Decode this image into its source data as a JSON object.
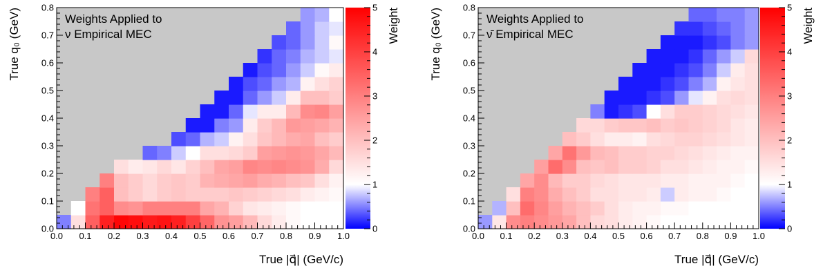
{
  "chart_data": [
    {
      "type": "heatmap",
      "title": "",
      "annotation_lines": [
        "Weights Applied to",
        "ν Empirical MEC"
      ],
      "xlabel": "True |q⃗| (GeV/c)",
      "ylabel": "True q₀ (GeV)",
      "zlabel": "Weight",
      "xlim": [
        0,
        1
      ],
      "ylim": [
        0,
        0.8
      ],
      "zlim": [
        0,
        5
      ],
      "x_ticks": [
        "0.0",
        "0.1",
        "0.2",
        "0.3",
        "0.4",
        "0.5",
        "0.6",
        "0.7",
        "0.8",
        "0.9",
        "1.0"
      ],
      "y_ticks": [
        "0.0",
        "0.1",
        "0.2",
        "0.3",
        "0.4",
        "0.5",
        "0.6",
        "0.7",
        "0.8"
      ],
      "z_ticks": [
        "0",
        "1",
        "2",
        "3",
        "4",
        "5"
      ],
      "bin_width_x": 0.05,
      "bin_width_y": 0.05,
      "empty_region_color": "#c8c8c8",
      "colorscale": [
        [
          0,
          "#0000ff"
        ],
        [
          1,
          "#ffffff"
        ],
        [
          5,
          "#ff0000"
        ]
      ],
      "z": [
        [
          0.5,
          1.5,
          3.5,
          4.5,
          4.9,
          4.8,
          4.6,
          4.7,
          4.5,
          4.0,
          3.4,
          2.7,
          2.5,
          2.1,
          1.6,
          1.3,
          1.1,
          1.0,
          1.0,
          1.0
        ],
        [
          0,
          1.0,
          3.2,
          3.5,
          2.8,
          2.7,
          3.0,
          3.0,
          3.0,
          3.0,
          2.4,
          2.2,
          1.7,
          1.4,
          1.3,
          1.2,
          1.1,
          1.0,
          1.0,
          1.0
        ],
        [
          0,
          0,
          3.0,
          3.5,
          2.0,
          1.8,
          1.6,
          1.8,
          1.9,
          1.8,
          1.8,
          1.8,
          1.9,
          1.8,
          1.7,
          1.6,
          1.5,
          1.3,
          1.2,
          1.1
        ],
        [
          0,
          0,
          0,
          3.0,
          2.0,
          1.8,
          1.6,
          1.8,
          1.9,
          1.8,
          2.2,
          2.3,
          2.4,
          2.5,
          2.3,
          2.2,
          2.0,
          1.9,
          1.5,
          1.2
        ],
        [
          0,
          0,
          0,
          0,
          1.5,
          1.3,
          1.4,
          1.6,
          1.4,
          1.7,
          2.0,
          2.4,
          2.5,
          2.9,
          2.8,
          2.9,
          2.8,
          2.7,
          2.3,
          1.6
        ],
        [
          0,
          0,
          0,
          0,
          0,
          0,
          0.4,
          0.5,
          0.8,
          1.0,
          1.5,
          1.5,
          1.6,
          1.8,
          2.5,
          2.6,
          2.7,
          2.6,
          2.4,
          2.1
        ],
        [
          0,
          0,
          0,
          0,
          0,
          0,
          0,
          0,
          0.3,
          0.4,
          0.7,
          0.8,
          1.2,
          1.5,
          1.9,
          2.1,
          2.3,
          2.4,
          2.0,
          1.8
        ],
        [
          0,
          0,
          0,
          0,
          0,
          0,
          0,
          0,
          0,
          0.1,
          0.1,
          0.5,
          0.6,
          1.3,
          1.8,
          2.1,
          2.6,
          2.5,
          2.4,
          2.2
        ],
        [
          0,
          0,
          0,
          0,
          0,
          0,
          0,
          0,
          0,
          0,
          0.1,
          0.1,
          0.4,
          0.9,
          1.3,
          1.3,
          2.1,
          2.8,
          2.9,
          2.5
        ],
        [
          0,
          0,
          0,
          0,
          0,
          0,
          0,
          0,
          0,
          0,
          0,
          0.1,
          0.1,
          0.4,
          0.6,
          0.8,
          1.3,
          2.0,
          2.0,
          1.8
        ],
        [
          0,
          0,
          0,
          0,
          0,
          0,
          0,
          0,
          0,
          0,
          0,
          0,
          0.1,
          0.3,
          0.4,
          0.6,
          0.7,
          1.2,
          1.5,
          1.7
        ],
        [
          0,
          0,
          0,
          0,
          0,
          0,
          0,
          0,
          0,
          0,
          0,
          0,
          0,
          0.1,
          0.3,
          0.4,
          0.6,
          0.8,
          1.1,
          1.3
        ],
        [
          0,
          0,
          0,
          0,
          0,
          0,
          0,
          0,
          0,
          0,
          0,
          0,
          0,
          0,
          0.2,
          0.4,
          0.5,
          0.7,
          0.8,
          0.9
        ],
        [
          0,
          0,
          0,
          0,
          0,
          0,
          0,
          0,
          0,
          0,
          0,
          0,
          0,
          0,
          0,
          0.3,
          0.4,
          0.6,
          0.8,
          1.1
        ],
        [
          0,
          0,
          0,
          0,
          0,
          0,
          0,
          0,
          0,
          0,
          0,
          0,
          0,
          0,
          0,
          0,
          0.4,
          0.6,
          0.8,
          0.9
        ],
        [
          0,
          0,
          0,
          0,
          0,
          0,
          0,
          0,
          0,
          0,
          0,
          0,
          0,
          0,
          0,
          0,
          0,
          0.6,
          0.7,
          1.0
        ]
      ]
    },
    {
      "type": "heatmap",
      "title": "",
      "annotation_lines": [
        "Weights Applied to",
        "ν̄ Empirical MEC"
      ],
      "xlabel": "True |q⃗| (GeV/c)",
      "ylabel": "True q₀ (GeV)",
      "zlabel": "Weight",
      "xlim": [
        0,
        1
      ],
      "ylim": [
        0,
        0.8
      ],
      "zlim": [
        0,
        5
      ],
      "x_ticks": [
        "0.0",
        "0.1",
        "0.2",
        "0.3",
        "0.4",
        "0.5",
        "0.6",
        "0.7",
        "0.8",
        "0.9",
        "1.0"
      ],
      "y_ticks": [
        "0.0",
        "0.1",
        "0.2",
        "0.3",
        "0.4",
        "0.5",
        "0.6",
        "0.7",
        "0.8"
      ],
      "z_ticks": [
        "0",
        "1",
        "2",
        "3",
        "4",
        "5"
      ],
      "bin_width_x": 0.05,
      "bin_width_y": 0.05,
      "empty_region_color": "#c8c8c8",
      "colorscale": [
        [
          0,
          "#0000ff"
        ],
        [
          1,
          "#ffffff"
        ],
        [
          5,
          "#ff0000"
        ]
      ],
      "z": [
        [
          0.6,
          1.4,
          2.8,
          3.0,
          2.8,
          2.6,
          2.4,
          2.0,
          1.6,
          1.5,
          1.3,
          1.2,
          1.1,
          1.0,
          1.0,
          1.0,
          1.0,
          1.0,
          1.0,
          1.0
        ],
        [
          0,
          0.7,
          2.0,
          3.3,
          2.9,
          2.5,
          2.2,
          2.0,
          1.8,
          1.5,
          1.3,
          1.2,
          1.2,
          1.1,
          1.1,
          1.0,
          1.0,
          1.0,
          1.0,
          1.0
        ],
        [
          0,
          0,
          1.5,
          3.0,
          2.8,
          2.3,
          2.0,
          1.8,
          1.5,
          1.5,
          1.4,
          1.4,
          1.3,
          0.8,
          1.3,
          1.2,
          1.2,
          1.1,
          1.0,
          1.0
        ],
        [
          0,
          0,
          0,
          2.4,
          2.8,
          2.1,
          1.8,
          1.8,
          1.6,
          1.5,
          1.4,
          1.4,
          1.4,
          1.3,
          1.3,
          1.2,
          1.2,
          1.2,
          1.1,
          1.0
        ],
        [
          0,
          0,
          0,
          0,
          2.5,
          3.3,
          2.8,
          2.0,
          1.9,
          2.0,
          1.8,
          1.8,
          1.7,
          1.5,
          1.5,
          1.4,
          1.3,
          1.2,
          1.2,
          1.1
        ],
        [
          0,
          0,
          0,
          0,
          0,
          2.4,
          3.2,
          2.6,
          2.1,
          2.0,
          1.8,
          1.8,
          1.7,
          1.7,
          1.6,
          1.5,
          1.4,
          1.3,
          1.2,
          1.2
        ],
        [
          0,
          0,
          0,
          0,
          0,
          0,
          2.0,
          1.8,
          1.5,
          1.3,
          1.3,
          1.2,
          1.5,
          1.6,
          1.7,
          1.7,
          1.6,
          1.5,
          1.4,
          1.3
        ],
        [
          0,
          0,
          0,
          0,
          0,
          0,
          0,
          1.6,
          1.6,
          1.8,
          1.9,
          1.9,
          2.0,
          1.8,
          1.9,
          1.8,
          1.7,
          1.6,
          1.4,
          1.3
        ],
        [
          0,
          0,
          0,
          0,
          0,
          0,
          0,
          0,
          0.5,
          0.1,
          0.2,
          0.3,
          1.0,
          1.5,
          1.8,
          1.8,
          1.7,
          1.6,
          1.5,
          1.4
        ],
        [
          0,
          0,
          0,
          0,
          0,
          0,
          0,
          0,
          0,
          0.1,
          0.1,
          0.1,
          0.2,
          0.3,
          0.6,
          0.9,
          1.2,
          1.5,
          1.6,
          1.5
        ],
        [
          0,
          0,
          0,
          0,
          0,
          0,
          0,
          0,
          0,
          0,
          0.1,
          0.1,
          0.1,
          0.2,
          0.3,
          0.5,
          0.7,
          1.2,
          1.4,
          1.5
        ],
        [
          0,
          0,
          0,
          0,
          0,
          0,
          0,
          0,
          0,
          0,
          0,
          0.1,
          0.1,
          0.1,
          0.2,
          0.3,
          0.5,
          0.8,
          1.3,
          1.5
        ],
        [
          0,
          0,
          0,
          0,
          0,
          0,
          0,
          0,
          0,
          0,
          0,
          0,
          0.1,
          0.1,
          0.1,
          0.2,
          0.4,
          0.6,
          0.8,
          1.6
        ],
        [
          0,
          0,
          0,
          0,
          0,
          0,
          0,
          0,
          0,
          0,
          0,
          0,
          0,
          0.1,
          0.1,
          0.1,
          0.2,
          0.3,
          0.5,
          0.6
        ],
        [
          0,
          0,
          0,
          0,
          0,
          0,
          0,
          0,
          0,
          0,
          0,
          0,
          0,
          0,
          0.2,
          0.2,
          0.3,
          0.4,
          0.5,
          0.6
        ],
        [
          0,
          0,
          0,
          0,
          0,
          0,
          0,
          0,
          0,
          0,
          0,
          0,
          0,
          0,
          0,
          0.4,
          0.4,
          0.5,
          0.5,
          0.6
        ]
      ]
    }
  ]
}
